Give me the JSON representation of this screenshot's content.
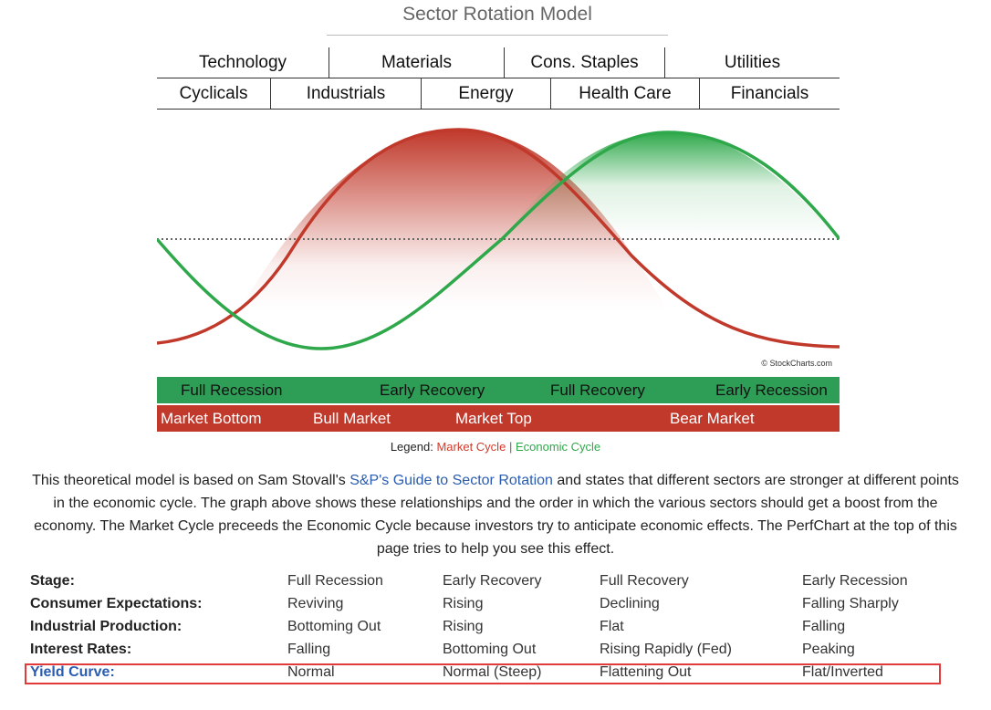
{
  "title": "Sector Rotation Model",
  "sectors_row1": [
    "Technology",
    "Materials",
    "Cons. Staples",
    "Utilities"
  ],
  "sectors_row2": [
    "Cyclicals",
    "Industrials",
    "Energy",
    "Health Care",
    "Financials"
  ],
  "chart": {
    "copyright": "© StockCharts.com",
    "colors": {
      "market": "#c0392b",
      "economic": "#2ea84a"
    }
  },
  "economic_band": [
    "Full Recession",
    "Early Recovery",
    "Full Recovery",
    "Early Recession"
  ],
  "market_band": [
    "Market Bottom",
    "Bull Market",
    "Market Top",
    "Bear Market"
  ],
  "legend": {
    "prefix": "Legend:",
    "market": "Market Cycle",
    "separator": "|",
    "economic": "Economic Cycle"
  },
  "paragraph": {
    "before": "This theoretical model is based on Sam Stovall's ",
    "link": "S&P's Guide to Sector Rotation",
    "after": " and states that different sectors are stronger at different points in the economic cycle. The graph above shows these relationships and the order in which the various sectors should get a boost from the economy. The Market Cycle preceeds the Economic Cycle because investors try to anticipate economic effects. The PerfChart at the top of this page tries to help you see this effect."
  },
  "table": [
    {
      "key": "Stage:",
      "values": [
        "Full Recession",
        "Early Recovery",
        "Full Recovery",
        "Early Recession"
      ]
    },
    {
      "key": "Consumer Expectations:",
      "values": [
        "Reviving",
        "Rising",
        "Declining",
        "Falling Sharply"
      ]
    },
    {
      "key": "Industrial Production:",
      "values": [
        "Bottoming Out",
        "Rising",
        "Flat",
        "Falling"
      ]
    },
    {
      "key": "Interest Rates:",
      "values": [
        "Falling",
        "Bottoming Out",
        "Rising Rapidly (Fed)",
        "Peaking"
      ]
    },
    {
      "key": "Yield Curve:",
      "values": [
        "Normal",
        "Normal (Steep)",
        "Flattening Out",
        "Flat/Inverted"
      ]
    }
  ]
}
